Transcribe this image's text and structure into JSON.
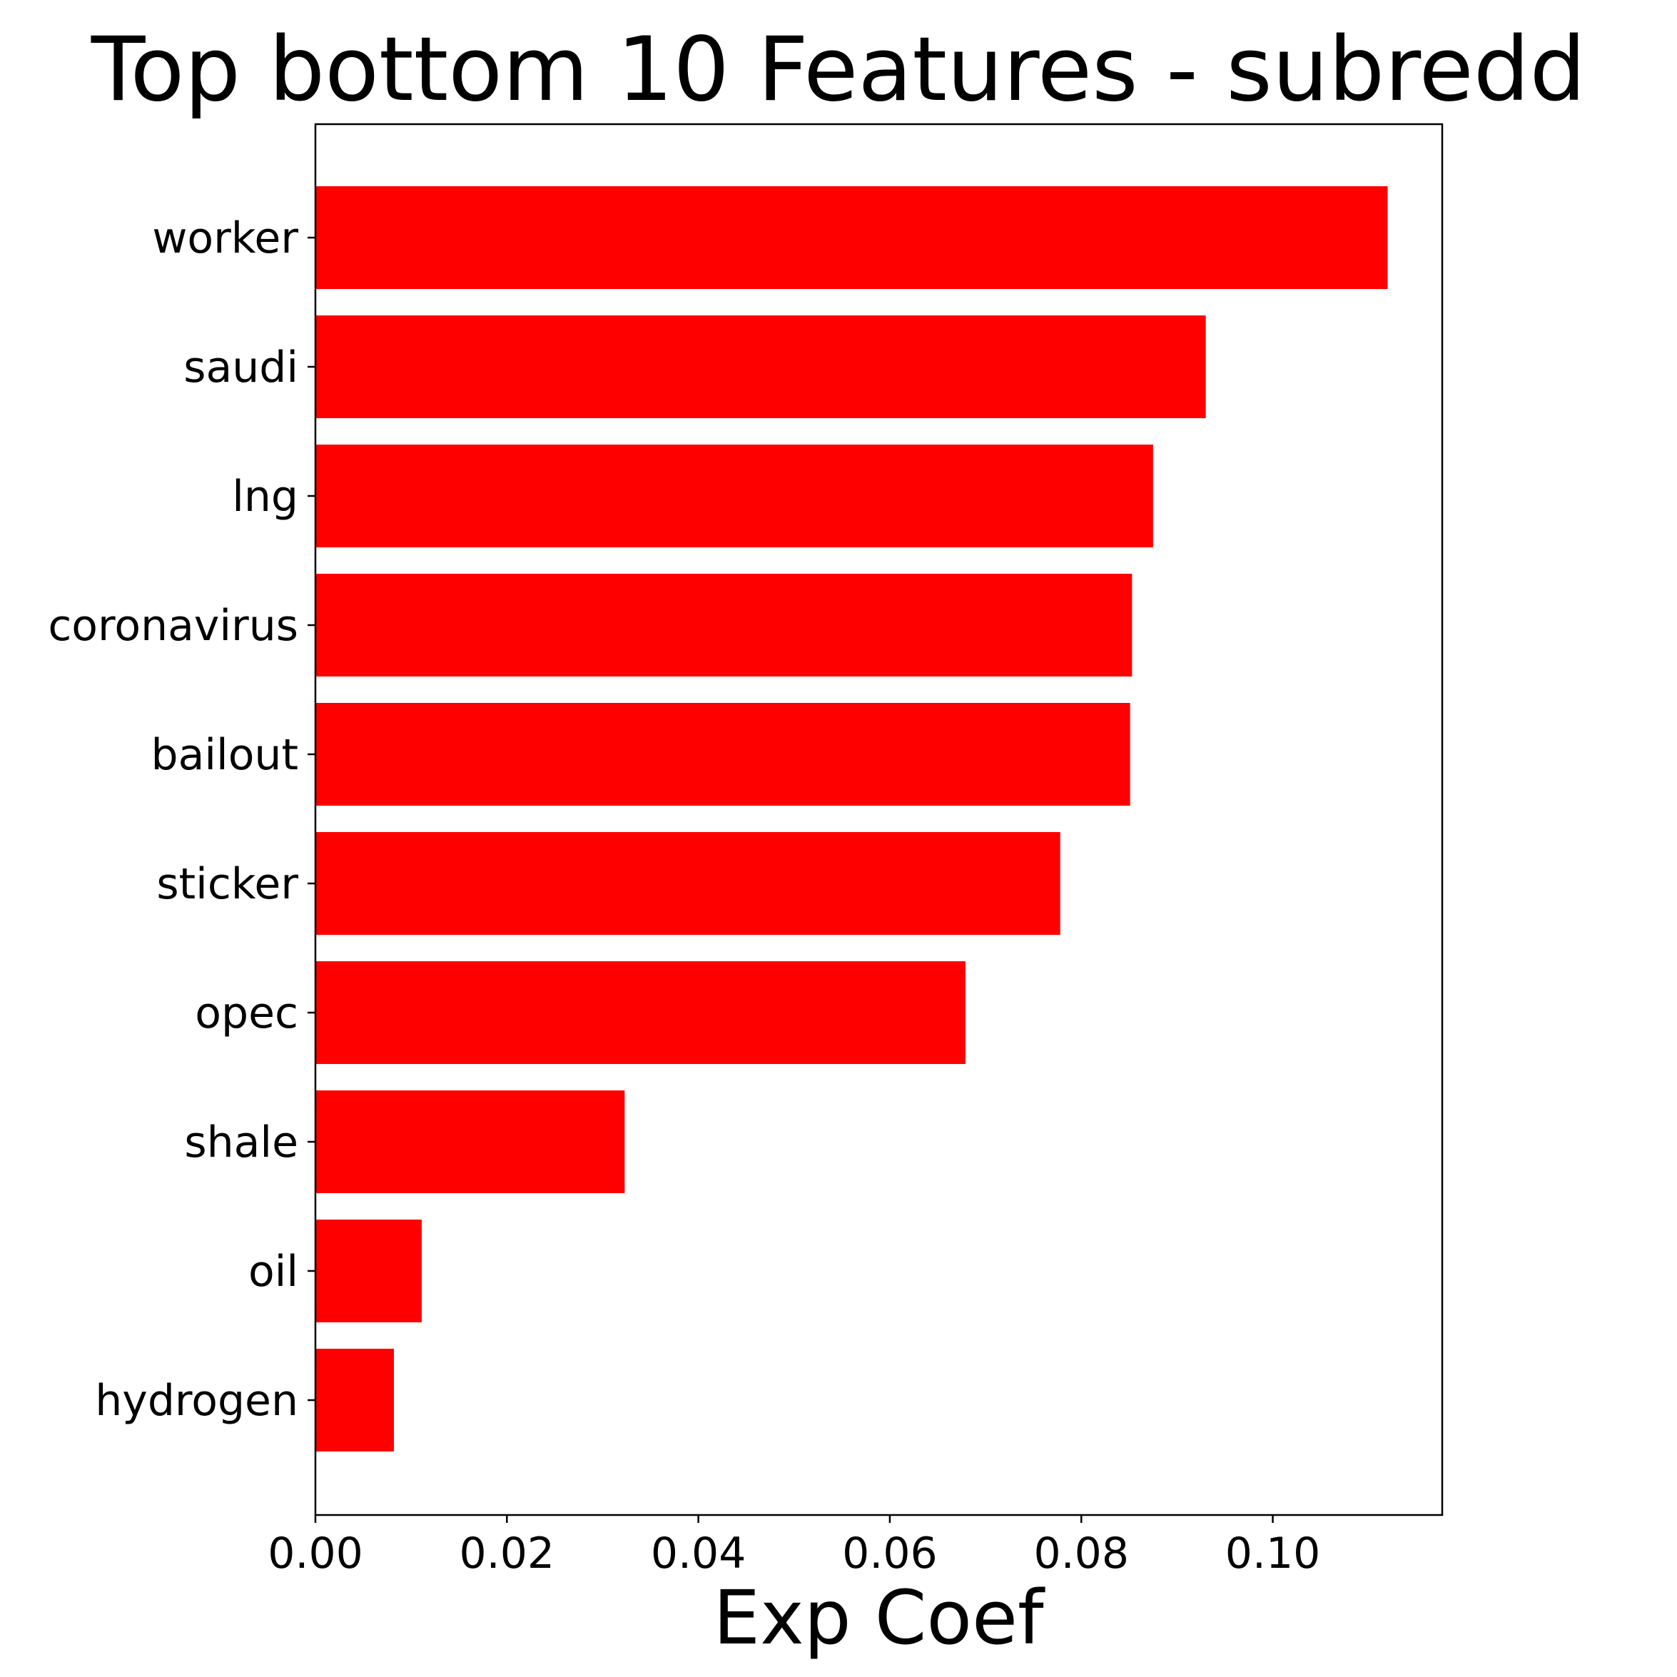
{
  "chart_data": {
    "type": "bar",
    "orientation": "horizontal",
    "title": "Top bottom 10 Features - subredd",
    "xlabel": "Exp Coef",
    "ylabel": "",
    "categories": [
      "worker",
      "saudi",
      "lng",
      "coronavirus",
      "bailout",
      "sticker",
      "opec",
      "shale",
      "oil",
      "hydrogen"
    ],
    "values": [
      0.112,
      0.093,
      0.0875,
      0.0853,
      0.0851,
      0.0778,
      0.0679,
      0.0323,
      0.0111,
      0.0082
    ],
    "xlim": [
      0,
      0.1177
    ],
    "xticks": [
      0.0,
      0.02,
      0.04,
      0.06,
      0.08,
      0.1
    ],
    "xtick_labels": [
      "0.00",
      "0.02",
      "0.04",
      "0.06",
      "0.08",
      "0.10"
    ],
    "bar_color": "#ff0000",
    "grid": false,
    "legend": false
  }
}
